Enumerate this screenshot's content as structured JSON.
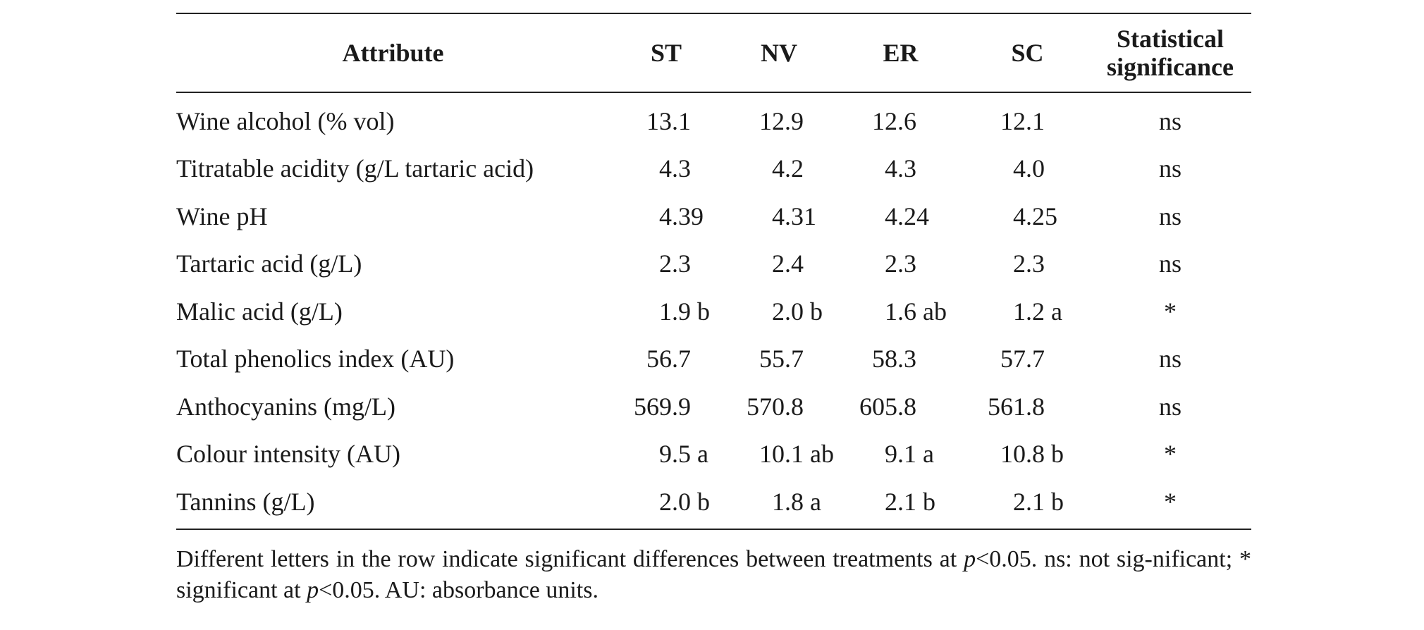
{
  "table": {
    "headers": {
      "attribute": "Attribute",
      "st": "ST",
      "nv": "NV",
      "er": "ER",
      "sc": "SC",
      "significance_line1": "Statistical",
      "significance_line2": "significance"
    },
    "rows": [
      {
        "attribute": "Wine alcohol (% vol)",
        "st": "13.1",
        "nv": "12.9",
        "er": "12.6",
        "sc": "12.1",
        "sig": "ns"
      },
      {
        "attribute": "Titratable acidity (g/L tartaric acid)",
        "st": "4.3",
        "nv": "4.2",
        "er": "4.3",
        "sc": "4.0",
        "sig": "ns"
      },
      {
        "attribute": "Wine pH",
        "st": "4.39",
        "nv": "4.31",
        "er": "4.24",
        "sc": "4.25",
        "sig": "ns"
      },
      {
        "attribute": "Tartaric acid (g/L)",
        "st": "2.3",
        "nv": "2.4",
        "er": "2.3",
        "sc": "2.3",
        "sig": "ns"
      },
      {
        "attribute": "Malic acid (g/L)",
        "st": "1.9 b",
        "nv": "2.0 b",
        "er": "1.6 ab",
        "sc": "1.2 a",
        "sig": "*"
      },
      {
        "attribute": "Total phenolics index (AU)",
        "st": "56.7",
        "nv": "55.7",
        "er": "58.3",
        "sc": "57.7",
        "sig": "ns"
      },
      {
        "attribute": "Anthocyanins (mg/L)",
        "st": "569.9",
        "nv": "570.8",
        "er": "605.8",
        "sc": "561.8",
        "sig": "ns"
      },
      {
        "attribute": "Colour intensity (AU)",
        "st": "9.5 a",
        "nv": "10.1 ab",
        "er": "9.1 a",
        "sc": "10.8 b",
        "sig": "*"
      },
      {
        "attribute": "Tannins (g/L)",
        "st": "2.0 b",
        "nv": "1.8 a",
        "er": "2.1 b",
        "sc": "2.1 b",
        "sig": "*"
      }
    ]
  },
  "footnote": {
    "part1": "Different letters in the row indicate significant differences between treatments at ",
    "p1": "p",
    "part2": "<0.05. ns: not sig-nificant; * significant at ",
    "p2": "p",
    "part3": "<0.05. AU: absorbance units."
  }
}
